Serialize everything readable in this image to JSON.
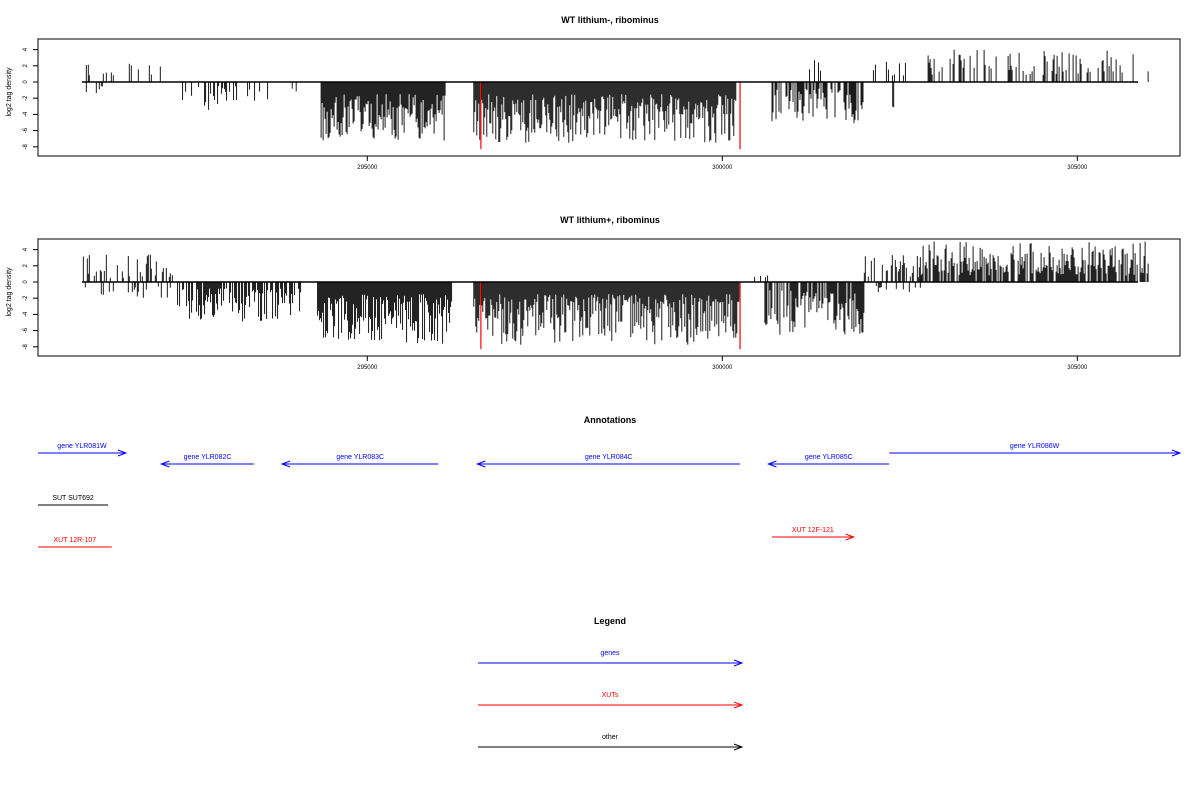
{
  "chart_data": [
    {
      "type": "bar",
      "title": "WT lithium-, ribominus",
      "xlabel": "",
      "ylabel": "log2 tag density",
      "xlim": [
        290000,
        306000
      ],
      "ylim": [
        -8,
        5
      ],
      "yticks": [
        "4",
        "2",
        "0",
        "-2",
        "-4",
        "-6",
        "-8"
      ],
      "xticks": [
        "295000",
        "300000",
        "305000"
      ],
      "marker_lines": [
        296600,
        300250
      ],
      "bar_color": "#000000",
      "marker_color": "#ff0000",
      "seed": 11,
      "segments": [
        {
          "start": 291000,
          "end": 292200,
          "density": 0.012,
          "sign": 1,
          "min": 0.5,
          "max": 3
        },
        {
          "start": 291000,
          "end": 291300,
          "density": 0.02,
          "sign": -1,
          "min": 0.5,
          "max": 1.7
        },
        {
          "start": 292300,
          "end": 293600,
          "density": 0.028,
          "sign": -1,
          "min": 0.5,
          "max": 3.5
        },
        {
          "start": 293900,
          "end": 294000,
          "density": 0.02,
          "sign": -1,
          "min": 0.5,
          "max": 1.2
        },
        {
          "start": 294350,
          "end": 296100,
          "density": 0.1,
          "sign": -1,
          "min": 1.5,
          "max": 7.3
        },
        {
          "start": 296500,
          "end": 300200,
          "density": 0.1,
          "sign": -1,
          "min": 1.5,
          "max": 7.5
        },
        {
          "start": 300700,
          "end": 302000,
          "density": 0.06,
          "sign": -1,
          "min": 0.8,
          "max": 5.2
        },
        {
          "start": 301200,
          "end": 301400,
          "density": 0.02,
          "sign": 1,
          "min": 0.8,
          "max": 2.7
        },
        {
          "start": 302100,
          "end": 302600,
          "density": 0.02,
          "sign": 1,
          "min": 0.8,
          "max": 3.3
        },
        {
          "start": 302400,
          "end": 302450,
          "density": 0.03,
          "sign": -1,
          "min": 3,
          "max": 3.2
        },
        {
          "start": 302800,
          "end": 306000,
          "density": 0.035,
          "sign": 1,
          "min": 0.8,
          "max": 4
        }
      ]
    },
    {
      "type": "bar",
      "title": "WT lithium+, ribominus",
      "xlabel": "",
      "ylabel": "log2 tag density",
      "xlim": [
        290000,
        306000
      ],
      "ylim": [
        -8,
        5
      ],
      "yticks": [
        "4",
        "2",
        "0",
        "-2",
        "-4",
        "-6",
        "-8"
      ],
      "xticks": [
        "295000",
        "300000",
        "305000"
      ],
      "marker_lines": [
        296600,
        300250
      ],
      "bar_color": "#000000",
      "marker_color": "#ff0000",
      "seed": 29,
      "segments": [
        {
          "start": 291000,
          "end": 292300,
          "density": 0.035,
          "sign": 1,
          "min": 0.5,
          "max": 3.5
        },
        {
          "start": 291000,
          "end": 292300,
          "density": 0.02,
          "sign": -1,
          "min": 0.5,
          "max": 2
        },
        {
          "start": 292300,
          "end": 294100,
          "density": 0.07,
          "sign": -1,
          "min": 0.8,
          "max": 5
        },
        {
          "start": 294300,
          "end": 296200,
          "density": 0.11,
          "sign": -1,
          "min": 1.5,
          "max": 7.8
        },
        {
          "start": 296500,
          "end": 300250,
          "density": 0.14,
          "sign": -1,
          "min": 1.5,
          "max": 7.8
        },
        {
          "start": 300300,
          "end": 300700,
          "density": 0.02,
          "sign": 1,
          "min": 0.5,
          "max": 1
        },
        {
          "start": 300600,
          "end": 302000,
          "density": 0.08,
          "sign": -1,
          "min": 1,
          "max": 6.8
        },
        {
          "start": 302000,
          "end": 302800,
          "density": 0.035,
          "sign": 1,
          "min": 0.5,
          "max": 3.5
        },
        {
          "start": 302000,
          "end": 302800,
          "density": 0.02,
          "sign": -1,
          "min": 0.5,
          "max": 1.5
        },
        {
          "start": 302800,
          "end": 306000,
          "density": 0.08,
          "sign": 1,
          "min": 0.8,
          "max": 5
        }
      ]
    },
    {
      "type": "annotation_track",
      "title": "Annotations",
      "features": [
        {
          "label": "gene YLR081W",
          "kind": "gene",
          "start": 290000,
          "end": 291600,
          "strand": "+",
          "row": 0,
          "color": "#0000ff"
        },
        {
          "label": "gene YLR082C",
          "kind": "gene",
          "start": 292100,
          "end": 293400,
          "strand": "-",
          "row": 1,
          "color": "#0000ff"
        },
        {
          "label": "gene YLR083C",
          "kind": "gene",
          "start": 293800,
          "end": 296000,
          "strand": "-",
          "row": 1,
          "color": "#0000ff"
        },
        {
          "label": "gene YLR084C",
          "kind": "gene",
          "start": 296550,
          "end": 300250,
          "strand": "-",
          "row": 1,
          "color": "#0000ff"
        },
        {
          "label": "gene YLR085C",
          "kind": "gene",
          "start": 300650,
          "end": 302350,
          "strand": "-",
          "row": 1,
          "color": "#0000ff"
        },
        {
          "label": "gene YLR086W",
          "kind": "gene",
          "start": 302350,
          "end": 306600,
          "strand": "+",
          "row": 0,
          "color": "#0000ff"
        },
        {
          "label": "SUT SUT692",
          "kind": "other",
          "start": 290000,
          "end": 291350,
          "strand": "none",
          "row": 2,
          "color": "#000000"
        },
        {
          "label": "XUT 12R-107",
          "kind": "XUT",
          "start": 290000,
          "end": 291400,
          "strand": "none",
          "row": 4,
          "color": "#ff0000"
        },
        {
          "label": "XUT 12F-121",
          "kind": "XUT",
          "start": 300700,
          "end": 301850,
          "strand": "+",
          "row": 3,
          "color": "#ff0000"
        }
      ]
    },
    {
      "type": "legend",
      "title": "Legend",
      "entries": [
        {
          "label": "genes",
          "color": "#0000ff"
        },
        {
          "label": "XUTs",
          "color": "#ff0000"
        },
        {
          "label": "other",
          "color": "#000000"
        }
      ]
    }
  ]
}
